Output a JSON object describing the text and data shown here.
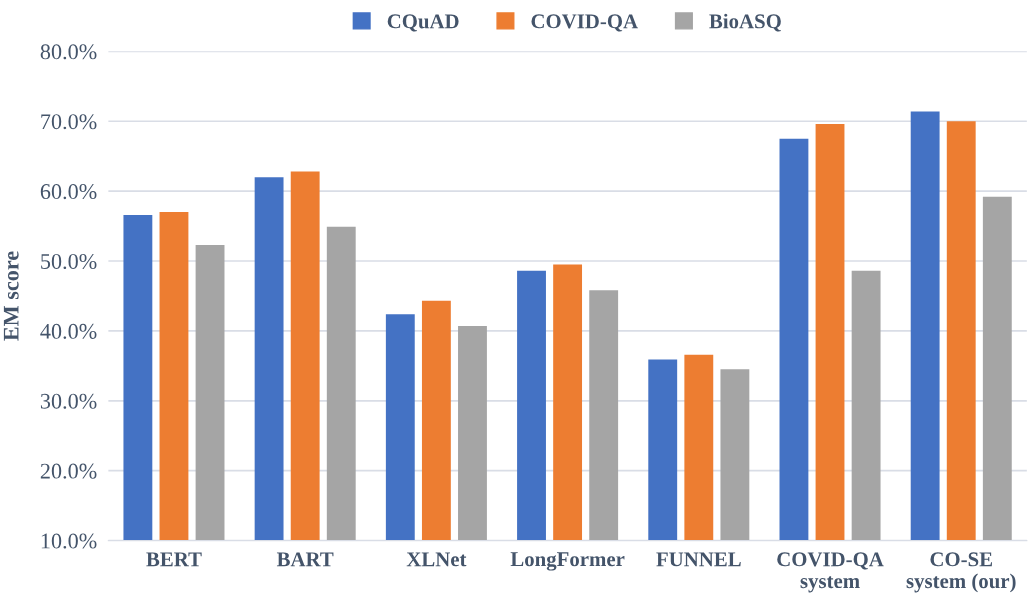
{
  "chart_data": {
    "type": "bar",
    "ylabel": "EM score",
    "categories": [
      "BERT",
      "BART",
      "XLNet",
      "LongFormer",
      "FUNNEL",
      "COVID-QA\nsystem",
      "CO-SE\nsystem (our)"
    ],
    "series": [
      {
        "name": "CQuAD",
        "color": "#4472c4",
        "values": [
          56.6,
          62.0,
          42.4,
          48.6,
          35.9,
          67.5,
          71.4
        ]
      },
      {
        "name": "COVID-QA",
        "color": "#ed7d31",
        "values": [
          57.0,
          62.8,
          44.3,
          49.5,
          36.6,
          69.6,
          70.0
        ]
      },
      {
        "name": "BioASQ",
        "color": "#a5a5a5",
        "values": [
          52.3,
          54.9,
          40.7,
          45.8,
          34.5,
          48.6,
          59.2
        ]
      }
    ],
    "ylim": [
      10,
      80
    ],
    "yticks": [
      {
        "value": 10,
        "label": "10.0%"
      },
      {
        "value": 20,
        "label": "20.0%"
      },
      {
        "value": 30,
        "label": "30.0%"
      },
      {
        "value": 40,
        "label": "40.0%"
      },
      {
        "value": 50,
        "label": "50.0%"
      },
      {
        "value": 60,
        "label": "60.0%"
      },
      {
        "value": 70,
        "label": "70.0%"
      },
      {
        "value": 80,
        "label": "80.0%"
      }
    ],
    "grid": "y",
    "legend": "top"
  }
}
